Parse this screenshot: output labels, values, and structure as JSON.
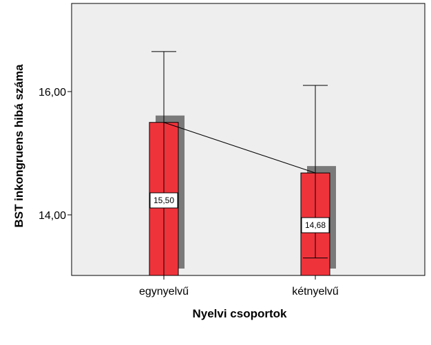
{
  "chart_data": {
    "type": "bar",
    "title": "",
    "xlabel": "Nyelvi csoportok",
    "ylabel": "BST inkongruens hibá száma",
    "categories": [
      "egynyelvű",
      "kétnyelvű"
    ],
    "values": [
      15.5,
      14.68
    ],
    "value_labels": [
      "15,50",
      "14,68"
    ],
    "error_bars": [
      {
        "lower": 12.0,
        "upper": 16.65
      },
      {
        "lower": 13.3,
        "upper": 16.1
      }
    ],
    "ylim": [
      13.0,
      17.1
    ],
    "yticks": [
      14.0,
      16.0
    ],
    "ytick_labels": [
      "14,00",
      "16,00"
    ],
    "grid": false,
    "connect_means": true,
    "colors": {
      "bar": "#ef333b",
      "shadow": "#7a7a7a",
      "plot_background": "#eeeeee",
      "line": "#000000"
    }
  }
}
